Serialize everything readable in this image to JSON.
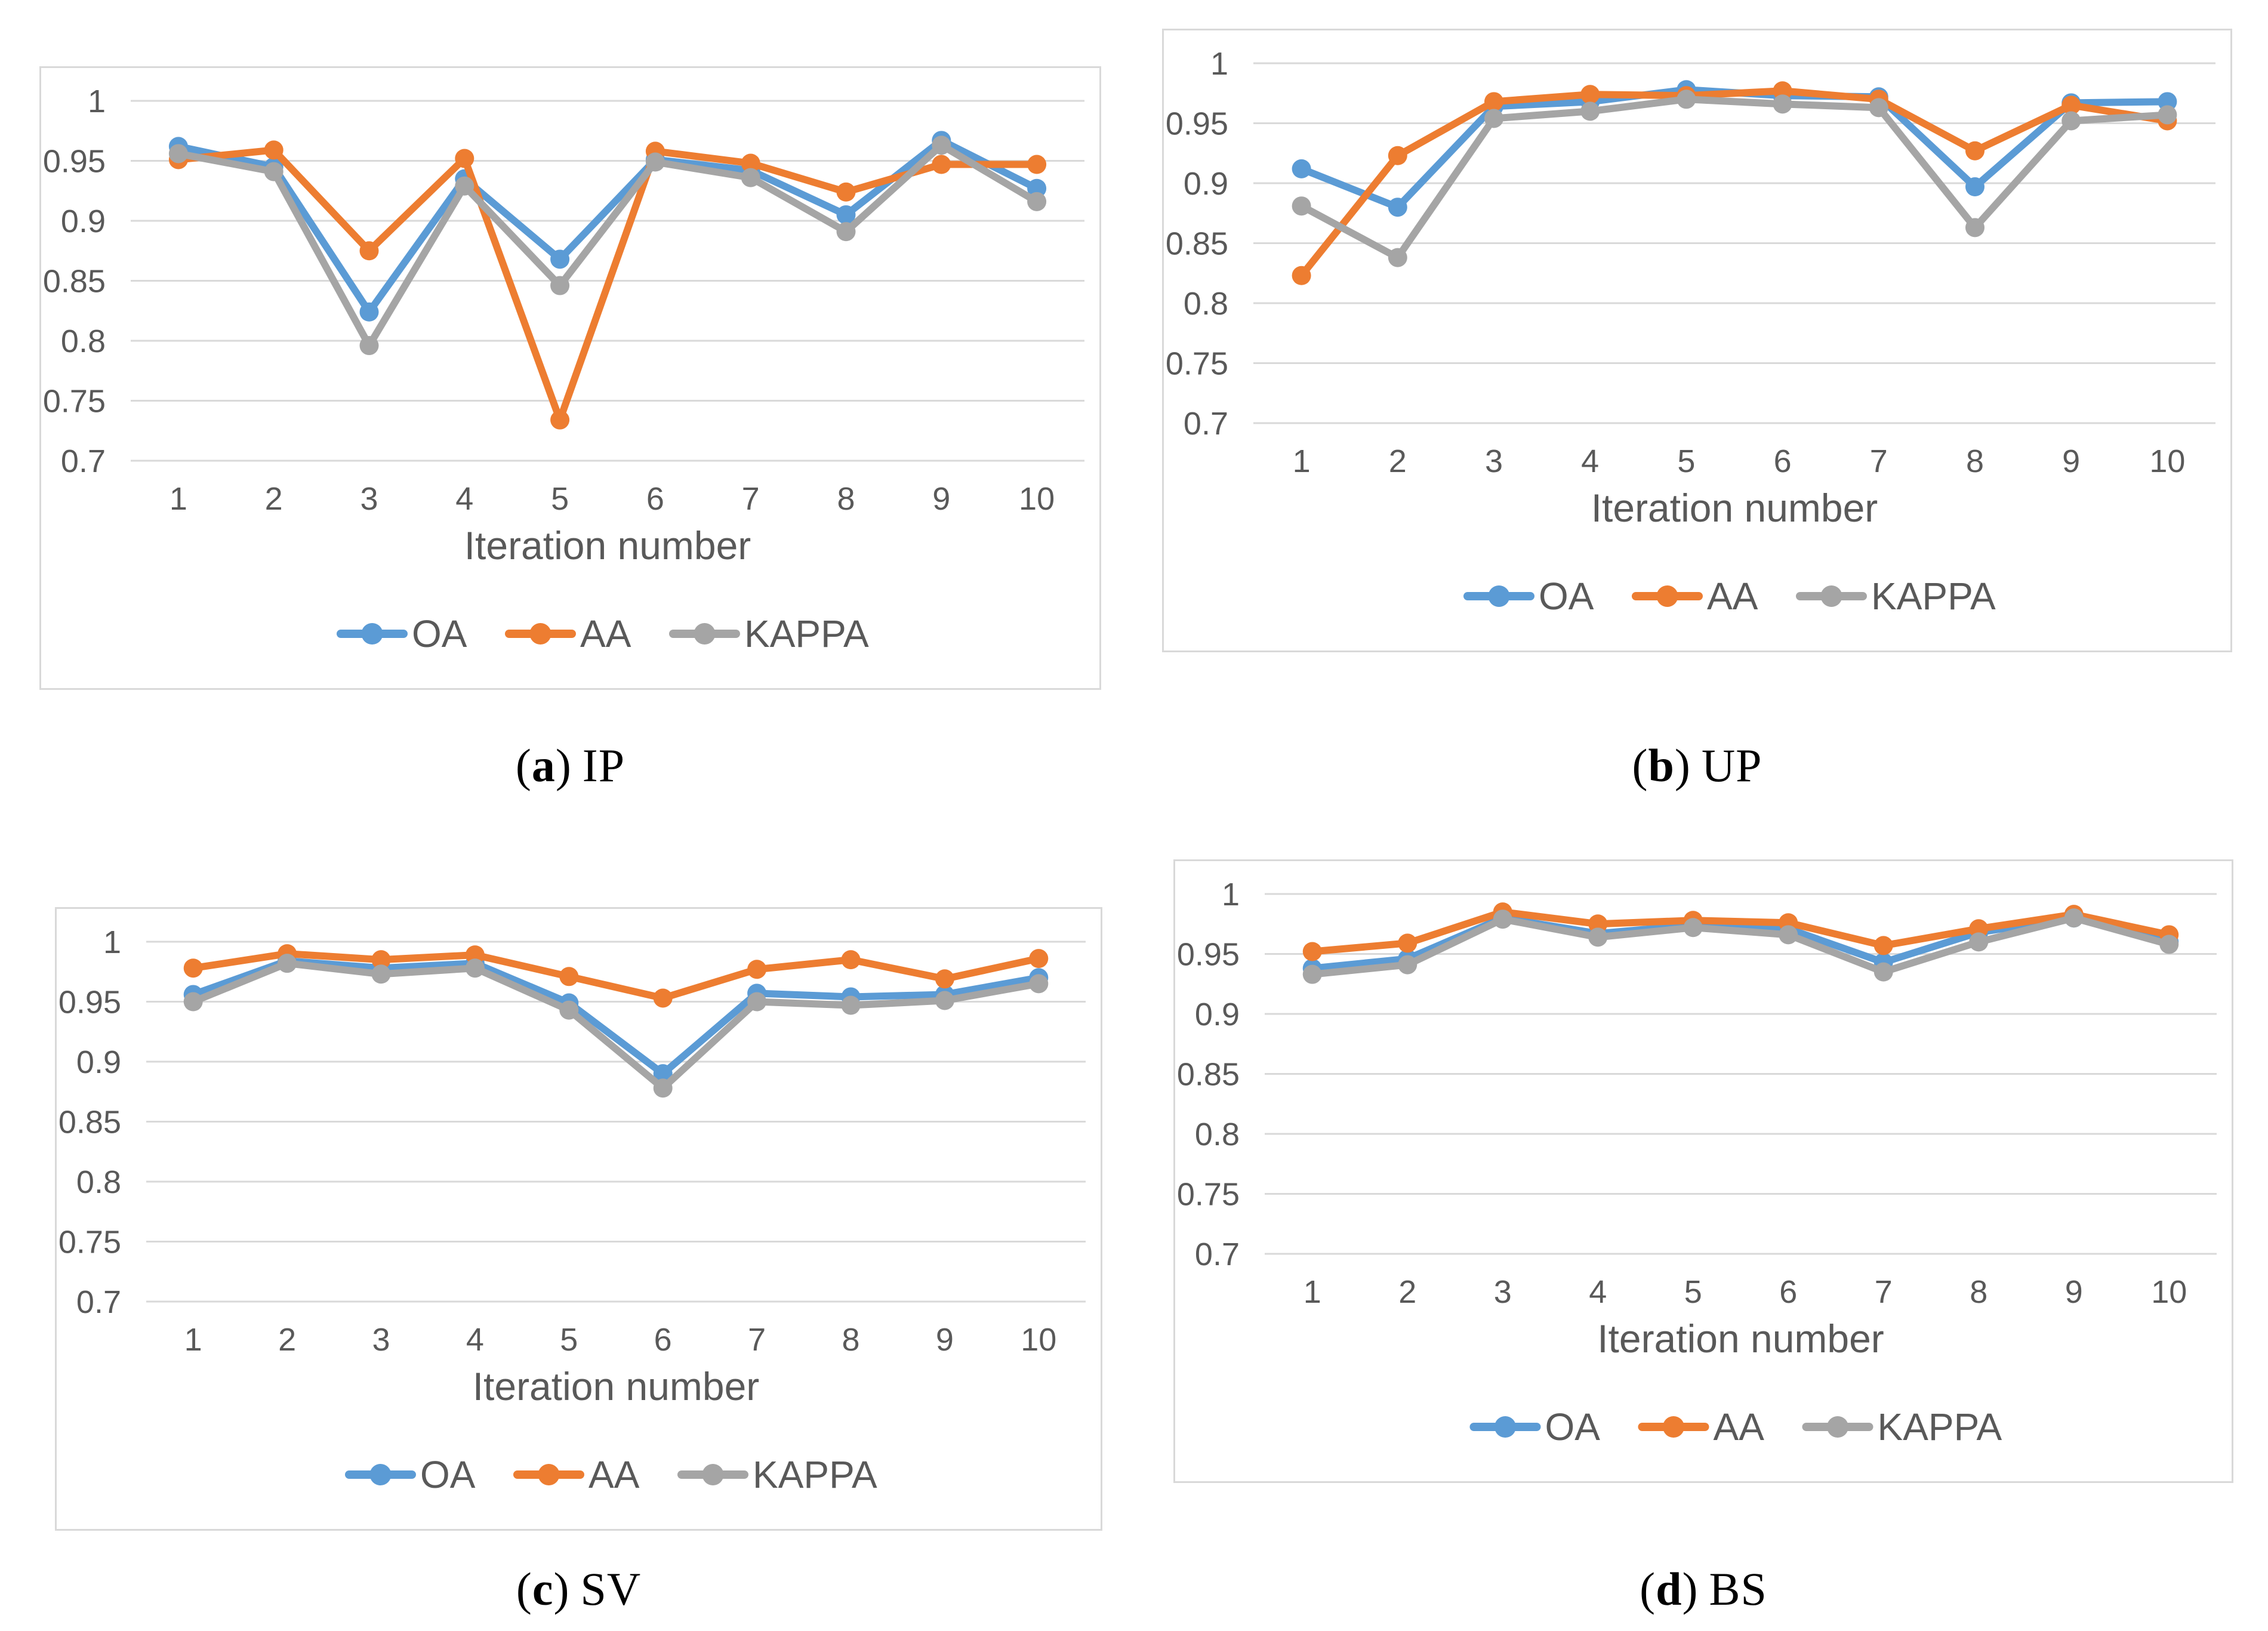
{
  "page": {
    "background": "#ffffff"
  },
  "colors": {
    "series_blue": "#5B9BD5",
    "series_orange": "#ED7D31",
    "series_gray": "#A5A5A5",
    "gridline": "#D9D9D9",
    "panel_border": "#D9D9D9",
    "axis_text": "#595959",
    "caption_text": "#000000"
  },
  "legend": {
    "position": "bottom",
    "entries": [
      {
        "label": "OA",
        "color": "#5B9BD5"
      },
      {
        "label": "AA",
        "color": "#ED7D31"
      },
      {
        "label": "KAPPA",
        "color": "#A5A5A5"
      }
    ]
  },
  "chart_data": [
    {
      "key": "a",
      "caption_prefix": "(",
      "caption_letter": "a",
      "caption_suffix": ")",
      "caption_label": "IP",
      "type": "line",
      "xlabel": "Iteration number",
      "x_categories": [
        "1",
        "2",
        "3",
        "4",
        "5",
        "6",
        "7",
        "8",
        "9",
        "10"
      ],
      "ylim": [
        0.7,
        1.0
      ],
      "y_ticks": [
        {
          "label": "1",
          "value": 1.0
        },
        {
          "label": "0.95",
          "value": 0.95
        },
        {
          "label": "0.9",
          "value": 0.9
        },
        {
          "label": "0.85",
          "value": 0.85
        },
        {
          "label": "0.8",
          "value": 0.8
        },
        {
          "label": "0.75",
          "value": 0.75
        },
        {
          "label": "0.7",
          "value": 0.7
        }
      ],
      "grid": "horizontal",
      "legend_position": "bottom",
      "series": [
        {
          "name": "OA",
          "color": "#5B9BD5",
          "values": [
            0.962,
            0.945,
            0.824,
            0.935,
            0.868,
            0.951,
            0.942,
            0.905,
            0.967,
            0.927
          ]
        },
        {
          "name": "AA",
          "color": "#ED7D31",
          "values": [
            0.951,
            0.959,
            0.875,
            0.952,
            0.734,
            0.958,
            0.948,
            0.924,
            0.947,
            0.947
          ]
        },
        {
          "name": "KAPPA",
          "color": "#A5A5A5",
          "values": [
            0.956,
            0.941,
            0.796,
            0.929,
            0.846,
            0.949,
            0.936,
            0.891,
            0.963,
            0.916
          ]
        }
      ]
    },
    {
      "key": "b",
      "caption_prefix": "(",
      "caption_letter": "b",
      "caption_suffix": ")",
      "caption_label": "UP",
      "type": "line",
      "xlabel": "Iteration number",
      "x_categories": [
        "1",
        "2",
        "3",
        "4",
        "5",
        "6",
        "7",
        "8",
        "9",
        "10"
      ],
      "ylim": [
        0.7,
        1.0
      ],
      "y_ticks": [
        {
          "label": "1",
          "value": 1.0
        },
        {
          "label": "0.95",
          "value": 0.95
        },
        {
          "label": "0.9",
          "value": 0.9
        },
        {
          "label": "0.85",
          "value": 0.85
        },
        {
          "label": "0.8",
          "value": 0.8
        },
        {
          "label": "0.75",
          "value": 0.75
        },
        {
          "label": "0.7",
          "value": 0.7
        }
      ],
      "grid": "horizontal",
      "legend_position": "bottom",
      "series": [
        {
          "name": "OA",
          "color": "#5B9BD5",
          "values": [
            0.912,
            0.88,
            0.964,
            0.968,
            0.978,
            0.973,
            0.972,
            0.897,
            0.967,
            0.968
          ]
        },
        {
          "name": "AA",
          "color": "#ED7D31",
          "values": [
            0.823,
            0.923,
            0.968,
            0.974,
            0.973,
            0.977,
            0.97,
            0.927,
            0.965,
            0.952
          ]
        },
        {
          "name": "KAPPA",
          "color": "#A5A5A5",
          "values": [
            0.881,
            0.838,
            0.954,
            0.96,
            0.97,
            0.966,
            0.963,
            0.863,
            0.952,
            0.957
          ]
        }
      ]
    },
    {
      "key": "c",
      "caption_prefix": "(",
      "caption_letter": "c",
      "caption_suffix": ")",
      "caption_label": "SV",
      "type": "line",
      "xlabel": "Iteration number",
      "x_categories": [
        "1",
        "2",
        "3",
        "4",
        "5",
        "6",
        "7",
        "8",
        "9",
        "10"
      ],
      "ylim": [
        0.7,
        1.0
      ],
      "y_ticks": [
        {
          "label": "1",
          "value": 1.0
        },
        {
          "label": "0.95",
          "value": 0.95
        },
        {
          "label": "0.9",
          "value": 0.9
        },
        {
          "label": "0.85",
          "value": 0.85
        },
        {
          "label": "0.8",
          "value": 0.8
        },
        {
          "label": "0.75",
          "value": 0.75
        },
        {
          "label": "0.7",
          "value": 0.7
        }
      ],
      "grid": "horizontal",
      "legend_position": "bottom",
      "series": [
        {
          "name": "OA",
          "color": "#5B9BD5",
          "values": [
            0.956,
            0.984,
            0.978,
            0.982,
            0.949,
            0.89,
            0.957,
            0.954,
            0.956,
            0.97
          ]
        },
        {
          "name": "AA",
          "color": "#ED7D31",
          "values": [
            0.978,
            0.99,
            0.985,
            0.989,
            0.971,
            0.953,
            0.977,
            0.985,
            0.969,
            0.986
          ]
        },
        {
          "name": "KAPPA",
          "color": "#A5A5A5",
          "values": [
            0.95,
            0.982,
            0.973,
            0.978,
            0.943,
            0.878,
            0.95,
            0.947,
            0.951,
            0.965
          ]
        }
      ]
    },
    {
      "key": "d",
      "caption_prefix": "(",
      "caption_letter": "d",
      "caption_suffix": ")",
      "caption_label": "BS",
      "type": "line",
      "xlabel": "Iteration number",
      "x_categories": [
        "1",
        "2",
        "3",
        "4",
        "5",
        "6",
        "7",
        "8",
        "9",
        "10"
      ],
      "ylim": [
        0.7,
        1.0
      ],
      "y_ticks": [
        {
          "label": "1",
          "value": 1.0
        },
        {
          "label": "0.95",
          "value": 0.95
        },
        {
          "label": "0.9",
          "value": 0.9
        },
        {
          "label": "0.85",
          "value": 0.85
        },
        {
          "label": "0.8",
          "value": 0.8
        },
        {
          "label": "0.75",
          "value": 0.75
        },
        {
          "label": "0.7",
          "value": 0.7
        }
      ],
      "grid": "horizontal",
      "legend_position": "bottom",
      "series": [
        {
          "name": "OA",
          "color": "#5B9BD5",
          "values": [
            0.938,
            0.946,
            0.98,
            0.967,
            0.974,
            0.971,
            0.943,
            0.968,
            0.98,
            0.96
          ]
        },
        {
          "name": "AA",
          "color": "#ED7D31",
          "values": [
            0.952,
            0.959,
            0.985,
            0.975,
            0.978,
            0.976,
            0.957,
            0.971,
            0.983,
            0.966
          ]
        },
        {
          "name": "KAPPA",
          "color": "#A5A5A5",
          "values": [
            0.933,
            0.941,
            0.979,
            0.964,
            0.972,
            0.966,
            0.935,
            0.96,
            0.98,
            0.958
          ]
        }
      ]
    }
  ]
}
